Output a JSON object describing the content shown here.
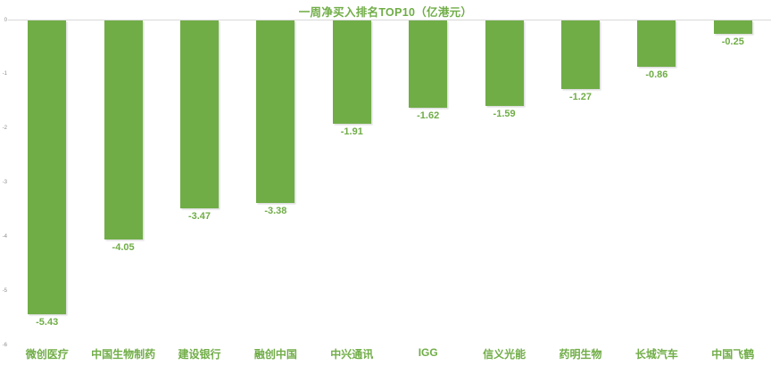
{
  "colors": {
    "bar": "#70AD47",
    "green_text": "#70AD47",
    "axis_text": "#8c8c8c",
    "zero_line": "#D9D9D9",
    "background": "#FFFFFF"
  },
  "chart_data": {
    "type": "bar",
    "title": "一周净买入排名TOP10（亿港元）",
    "categories": [
      "微创医疗",
      "中国生物制药",
      "建设银行",
      "融创中国",
      "中兴通讯",
      "IGG",
      "信义光能",
      "药明生物",
      "长城汽车",
      "中国飞鹤"
    ],
    "values": [
      -5.43,
      -4.05,
      -3.47,
      -3.38,
      -1.91,
      -1.62,
      -1.59,
      -1.27,
      -0.86,
      -0.25
    ],
    "data_labels": [
      "-5.43",
      "-4.05",
      "-3.47",
      "-3.38",
      "-1.91",
      "-1.62",
      "-1.59",
      "-1.27",
      "-0.86",
      "-0.25"
    ],
    "xlabel": "",
    "ylabel": "",
    "ylim": [
      -6,
      0
    ],
    "yticks": [
      "0",
      "-1",
      "-2",
      "-3",
      "-4",
      "-5",
      "-6"
    ],
    "grid": false,
    "legend": null,
    "bar_label_position": "below-bar",
    "orientation": "vertical-negative"
  }
}
